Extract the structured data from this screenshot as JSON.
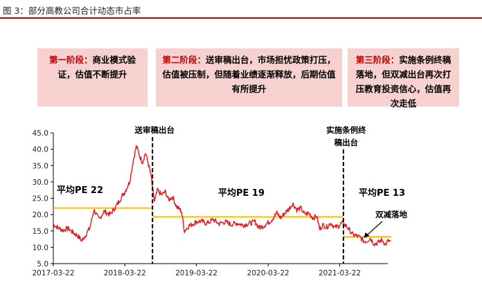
{
  "figure_title": "图 3：部分高教公司合计动态市占率",
  "phases": [
    {
      "label": "第一阶段：",
      "text": "商业模式验证，估值不断提升"
    },
    {
      "label": "第二阶段：",
      "text": "送审稿出台，市场担忧政策打压，估值被压制，但随着业绩逐渐释放，后期估值有所提升"
    },
    {
      "label": "第三阶段：",
      "text": "实施条例终稿落地，但双减出台再次打压教育投资信心，估值再次走低"
    }
  ],
  "chart_data": {
    "type": "line",
    "title": "",
    "xlabel": "",
    "ylabel": "",
    "ylim": [
      5,
      45
    ],
    "yticks": [
      "5.0",
      "10.0",
      "15.0",
      "20.0",
      "25.0",
      "30.0",
      "35.0",
      "40.0",
      "45.0"
    ],
    "xticks": [
      "2017-03-22",
      "2018-03-22",
      "2019-03-22",
      "2020-03-22",
      "2021-03-22"
    ],
    "grid": false,
    "legend": "none",
    "series": [
      {
        "color": "#e8141b",
        "points": [
          [
            "2017-03-22",
            17.0
          ],
          [
            "2017-04-15",
            16.0
          ],
          [
            "2017-05-10",
            15.2
          ],
          [
            "2017-06-05",
            15.8
          ],
          [
            "2017-07-01",
            14.5
          ],
          [
            "2017-07-25",
            13.5
          ],
          [
            "2017-08-15",
            12.0
          ],
          [
            "2017-09-05",
            14.0
          ],
          [
            "2017-09-25",
            16.0
          ],
          [
            "2017-10-15",
            21.5
          ],
          [
            "2017-11-10",
            18.5
          ],
          [
            "2017-12-05",
            21.0
          ],
          [
            "2018-01-05",
            20.0
          ],
          [
            "2018-02-05",
            22.5
          ],
          [
            "2018-03-01",
            25.0
          ],
          [
            "2018-03-22",
            27.0
          ],
          [
            "2018-04-15",
            30.0
          ],
          [
            "2018-05-05",
            37.0
          ],
          [
            "2018-05-20",
            41.0
          ],
          [
            "2018-06-05",
            38.0
          ],
          [
            "2018-06-20",
            36.0
          ],
          [
            "2018-07-05",
            39.0
          ],
          [
            "2018-07-20",
            35.5
          ],
          [
            "2018-08-05",
            31.0
          ],
          [
            "2018-08-10",
            28.0
          ],
          [
            "2018-08-20",
            24.0
          ],
          [
            "2018-09-05",
            27.5
          ],
          [
            "2018-09-25",
            26.0
          ],
          [
            "2018-10-15",
            27.0
          ],
          [
            "2018-10-30",
            24.5
          ],
          [
            "2018-11-20",
            25.5
          ],
          [
            "2018-12-10",
            22.5
          ],
          [
            "2019-01-05",
            21.0
          ],
          [
            "2019-01-20",
            15.0
          ],
          [
            "2019-02-10",
            16.5
          ],
          [
            "2019-03-05",
            17.2
          ],
          [
            "2019-03-22",
            17.8
          ],
          [
            "2019-04-15",
            18.0
          ],
          [
            "2019-05-15",
            17.3
          ],
          [
            "2019-06-15",
            18.5
          ],
          [
            "2019-07-15",
            17.2
          ],
          [
            "2019-08-15",
            17.8
          ],
          [
            "2019-09-15",
            17.0
          ],
          [
            "2019-10-15",
            17.4
          ],
          [
            "2019-11-15",
            16.8
          ],
          [
            "2019-12-15",
            17.3
          ],
          [
            "2020-01-15",
            17.8
          ],
          [
            "2020-02-05",
            16.0
          ],
          [
            "2020-02-25",
            16.5
          ],
          [
            "2020-03-15",
            17.2
          ],
          [
            "2020-04-10",
            18.5
          ],
          [
            "2020-05-05",
            20.5
          ],
          [
            "2020-05-25",
            19.0
          ],
          [
            "2020-06-15",
            20.5
          ],
          [
            "2020-07-10",
            22.0
          ],
          [
            "2020-07-25",
            23.5
          ],
          [
            "2020-08-15",
            21.5
          ],
          [
            "2020-09-05",
            22.0
          ],
          [
            "2020-09-25",
            20.0
          ],
          [
            "2020-10-15",
            20.5
          ],
          [
            "2020-11-05",
            19.0
          ],
          [
            "2020-11-25",
            19.5
          ],
          [
            "2020-12-10",
            15.5
          ],
          [
            "2020-12-25",
            16.8
          ],
          [
            "2021-01-15",
            16.2
          ],
          [
            "2021-02-05",
            17.5
          ],
          [
            "2021-02-25",
            16.0
          ],
          [
            "2021-03-15",
            16.5
          ],
          [
            "2021-04-05",
            17.5
          ],
          [
            "2021-04-25",
            16.5
          ],
          [
            "2021-05-15",
            15.0
          ],
          [
            "2021-05-25",
            14.0
          ],
          [
            "2021-06-15",
            13.5
          ],
          [
            "2021-07-05",
            13.0
          ],
          [
            "2021-07-20",
            12.0
          ],
          [
            "2021-08-05",
            11.8
          ],
          [
            "2021-08-25",
            12.8
          ],
          [
            "2021-09-15",
            11.0
          ],
          [
            "2021-10-05",
            11.5
          ],
          [
            "2021-10-25",
            12.3
          ],
          [
            "2021-11-10",
            10.8
          ],
          [
            "2021-11-25",
            12.0
          ],
          [
            "2021-12-10",
            11.5
          ]
        ]
      }
    ],
    "segments": [
      {
        "label": "平均PE 22",
        "value": 22,
        "start": "2017-03-22",
        "end": "2018-08-10"
      },
      {
        "label": "平均PE 19",
        "value": 19.3,
        "start": "2018-08-10",
        "end": "2021-04-10"
      },
      {
        "label": "平均PE 13",
        "value": 13.2,
        "start": "2021-04-10",
        "end": "2021-12-10"
      }
    ],
    "events": [
      {
        "label": "送审稿出台",
        "date": "2018-08-10"
      },
      {
        "label": "实施条例终稿出台",
        "date": "2021-04-10"
      }
    ],
    "annotations": [
      {
        "label": "双减落地",
        "date": "2021-07-24",
        "value": 12.0
      }
    ],
    "colors": {
      "line": "#e8141b",
      "average": "#ffc000",
      "event_line": "#000000"
    }
  }
}
